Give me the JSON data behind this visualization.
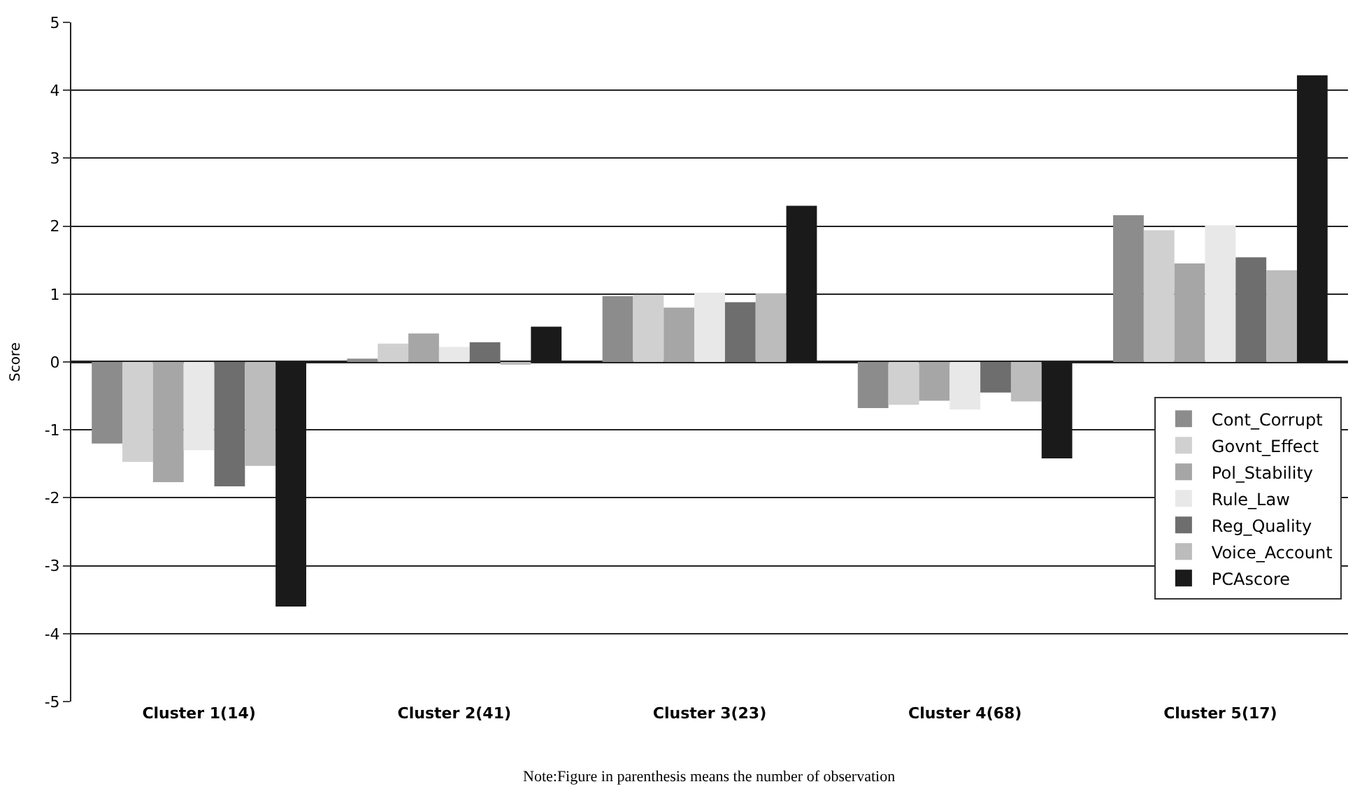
{
  "chart_data": {
    "type": "bar",
    "ylabel": "Score",
    "categories": [
      "Cluster 1(14)",
      "Cluster 2(41)",
      "Cluster 3(23)",
      "Cluster 4(68)",
      "Cluster 5(17)"
    ],
    "series": [
      {
        "name": "Cont_Corrupt",
        "color": "#8c8c8c",
        "values": [
          -1.2,
          0.05,
          0.97,
          -0.68,
          2.16
        ]
      },
      {
        "name": "Govnt_Effect",
        "color": "#d0d0d0",
        "values": [
          -1.47,
          0.27,
          0.99,
          -0.63,
          1.94
        ]
      },
      {
        "name": "Pol_Stability",
        "color": "#a6a6a6",
        "values": [
          -1.77,
          0.42,
          0.8,
          -0.57,
          1.45
        ]
      },
      {
        "name": "Rule_Law",
        "color": "#e8e8e8",
        "values": [
          -1.3,
          0.22,
          1.02,
          -0.7,
          2.01
        ]
      },
      {
        "name": "Reg_Quality",
        "color": "#6e6e6e",
        "values": [
          -1.83,
          0.29,
          0.88,
          -0.45,
          1.54
        ]
      },
      {
        "name": "Voice_Account",
        "color": "#bcbcbc",
        "values": [
          -1.53,
          -0.04,
          1.01,
          -0.58,
          1.35
        ]
      },
      {
        "name": "PCAscore",
        "color": "#1a1a1a",
        "values": [
          -3.6,
          0.52,
          2.3,
          -1.42,
          4.22
        ]
      }
    ],
    "ylim": [
      -5,
      5
    ],
    "yticks": [
      -5,
      -4,
      -3,
      -2,
      -1,
      0,
      1,
      2,
      3,
      4,
      5
    ],
    "grid": "y",
    "legend": "bottom right",
    "annotations": [
      "Note:Figure in parenthesis means the number of observation"
    ]
  }
}
